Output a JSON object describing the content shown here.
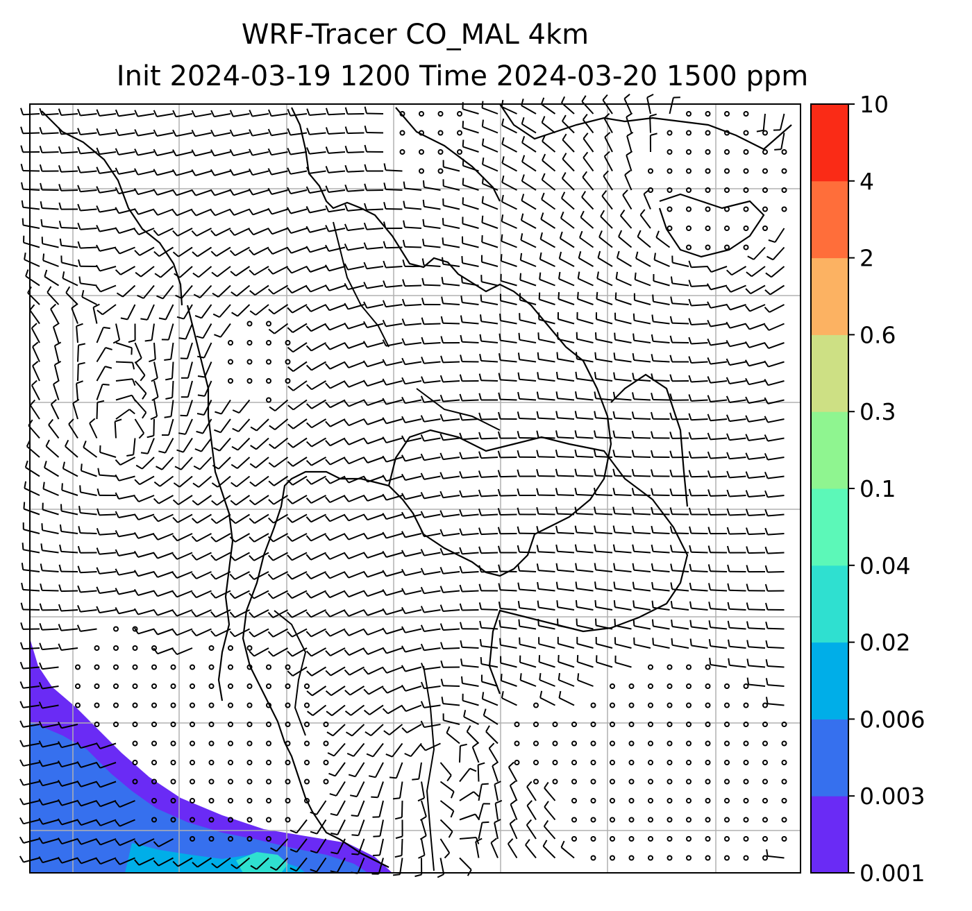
{
  "title": {
    "line1": "WRF-Tracer CO_MAL 4km",
    "line2": "Init 2024-03-19 1200 Time 2024-03-20 1500 ppm"
  },
  "colorbar": {
    "labels": [
      "0.001",
      "0.003",
      "0.006",
      "0.02",
      "0.04",
      "0.1",
      "0.3",
      "0.6",
      "2",
      "4",
      "10"
    ],
    "colors": [
      "#6a2bf5",
      "#3670ee",
      "#00aee8",
      "#2fe0d0",
      "#5cf8b8",
      "#8ff590",
      "#cde084",
      "#fcb262",
      "#ff6e3a",
      "#fa2b16"
    ]
  },
  "map": {
    "grid_rows": 7,
    "grid_cols": 7,
    "barb_color": "#000000",
    "grid_color": "#b0b0b0",
    "field_colors": {
      "low": "#6a2bf5",
      "mid": "#3670ee",
      "high": "#00aee8",
      "peak": "#2fe0d0"
    }
  }
}
